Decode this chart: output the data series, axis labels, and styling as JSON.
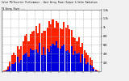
{
  "title": "Solar PV/Inverter Performance - West Array Power Output & Solar Radiation",
  "subtitle": "PV Array Power ---",
  "bg_color": "#f0f0f0",
  "plot_bg_color": "#ffffff",
  "grid_color": "#aaaaaa",
  "bar_color_red": "#ff2200",
  "bar_color_blue": "#0000dd",
  "n_groups": 53,
  "ylim": [
    0,
    1400
  ],
  "yticks_right": [
    200,
    400,
    600,
    800,
    1000,
    1200,
    1400
  ],
  "ytick_labels_right": [
    "200",
    "400",
    "600",
    "800",
    "1k",
    "1.2k",
    "1.4k"
  ]
}
